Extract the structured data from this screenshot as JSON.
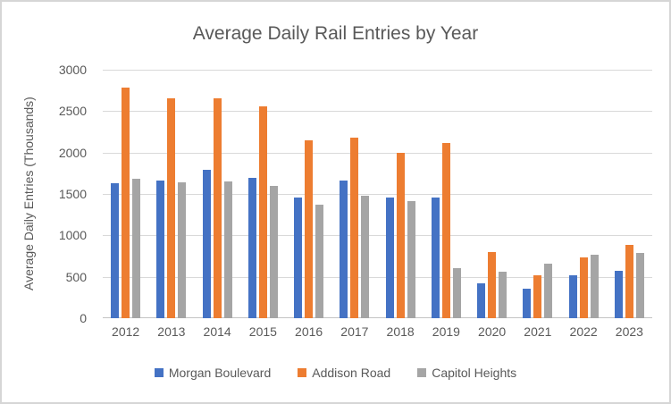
{
  "chart_data": {
    "type": "bar",
    "title": "Average Daily Rail Entries by Year",
    "xlabel": "",
    "ylabel": "Average Daily Entries (Thousands)",
    "categories": [
      "2012",
      "2013",
      "2014",
      "2015",
      "2016",
      "2017",
      "2018",
      "2019",
      "2020",
      "2021",
      "2022",
      "2023"
    ],
    "series": [
      {
        "name": "Morgan Boulevard",
        "color": "#4472C4",
        "values": [
          1630,
          1660,
          1795,
          1690,
          1455,
          1665,
          1455,
          1460,
          420,
          355,
          520,
          575
        ]
      },
      {
        "name": "Addison Road",
        "color": "#ED7D31",
        "values": [
          2780,
          2660,
          2650,
          2560,
          2150,
          2175,
          2000,
          2110,
          800,
          515,
          730,
          890
        ]
      },
      {
        "name": "Capitol Heights",
        "color": "#A5A5A5",
        "values": [
          1680,
          1640,
          1650,
          1600,
          1370,
          1475,
          1410,
          600,
          560,
          655,
          765,
          785
        ]
      }
    ],
    "ylim": [
      0,
      3000
    ],
    "yticks": [
      0,
      500,
      1000,
      1500,
      2000,
      2500,
      3000
    ],
    "grid": true,
    "legend_position": "bottom",
    "text_color": "#595959",
    "gridline_color": "#D9D9D9"
  }
}
